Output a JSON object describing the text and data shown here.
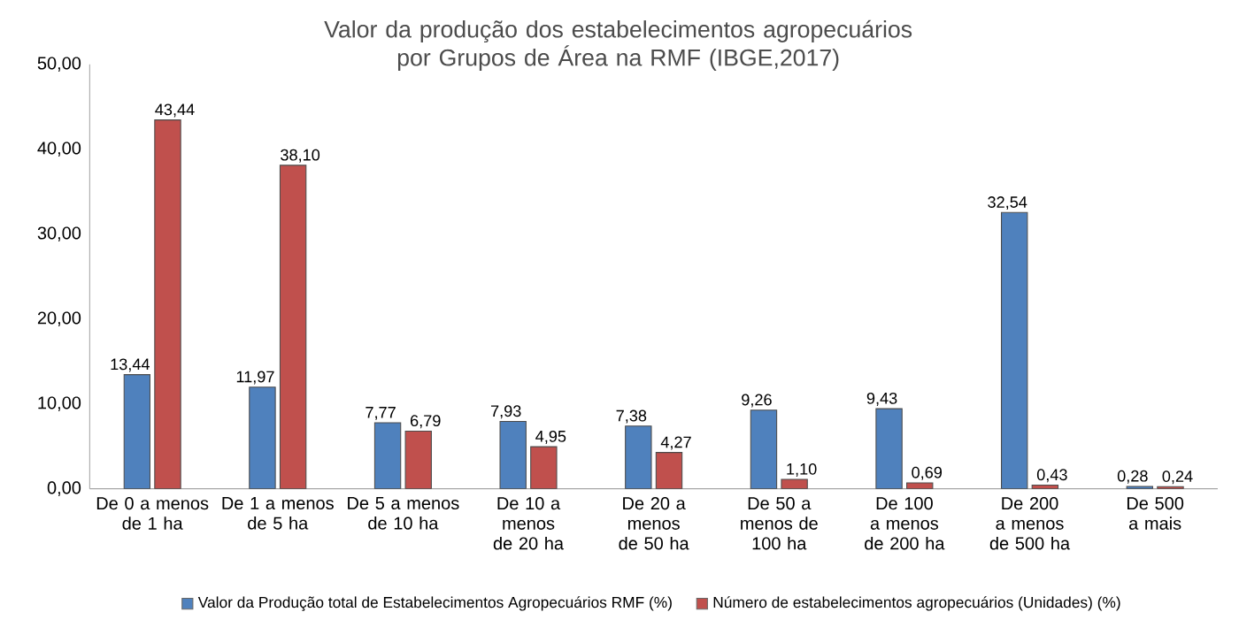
{
  "chart_data": {
    "type": "bar",
    "title": "Valor da produção dos estabelecimentos agropecuários por Grupos de Área na RMF (IBGE,2017)",
    "categories": [
      "De 0 a menos de 1 ha",
      "De 1 a menos de 5 ha",
      "De 5 a menos de 10 ha",
      "De 10 a menos de 20 ha",
      "De 20 a menos de 50 ha",
      "De 50 a menos de 100 ha",
      "De 100 a menos de 200 ha",
      "De 200 a menos de 500 ha",
      "De 500 a mais"
    ],
    "series": [
      {
        "name": "Valor da Produção total de Estabelecimentos Agropecuários RMF (%)",
        "color": "#4f81bd",
        "values": [
          13.44,
          11.97,
          7.77,
          7.93,
          7.38,
          9.26,
          9.43,
          32.54,
          0.28
        ],
        "value_labels": [
          "13,44",
          "11,97",
          "7,77",
          "7,93",
          "7,38",
          "9,26",
          "9,43",
          "32,54",
          "0,28"
        ]
      },
      {
        "name": "Número de estabelecimentos agropecuários (Unidades) (%)",
        "color": "#c0504d",
        "values": [
          43.44,
          38.1,
          6.79,
          4.95,
          4.27,
          1.1,
          0.69,
          0.43,
          0.24
        ],
        "value_labels": [
          "43,44",
          "38,10",
          "6,79",
          "4,95",
          "4,27",
          "1,10",
          "0,69",
          "0,43",
          "0,24"
        ]
      }
    ],
    "ylim": [
      0,
      50
    ],
    "yticks": [
      {
        "value": 0,
        "label": "0,00"
      },
      {
        "value": 10,
        "label": "10,00"
      },
      {
        "value": 20,
        "label": "20,00"
      },
      {
        "value": 30,
        "label": "30,00"
      },
      {
        "value": 40,
        "label": "40,00"
      },
      {
        "value": 50,
        "label": "50,00"
      }
    ],
    "legend": "bottom"
  }
}
